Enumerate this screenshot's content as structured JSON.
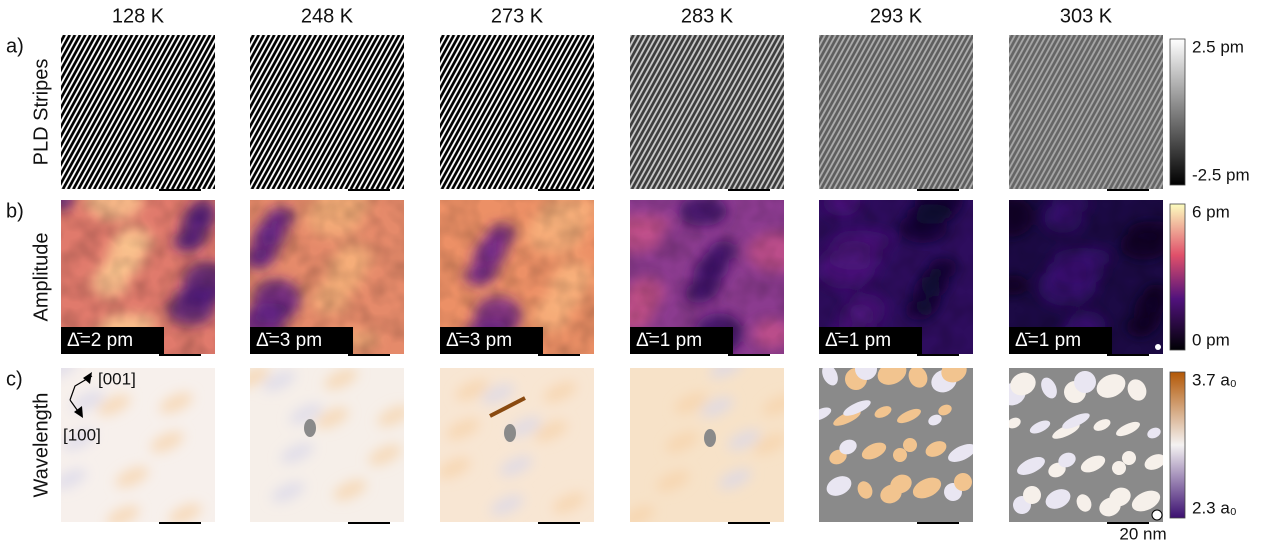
{
  "columns": [
    "128 K",
    "248 K",
    "273 K",
    "283 K",
    "293 K",
    "303 K"
  ],
  "rows": [
    {
      "letter": "a)",
      "label": "PLD Stripes",
      "colorbar": {
        "max": "2.5 pm",
        "min": "-2.5 pm"
      }
    },
    {
      "letter": "b)",
      "label": "Amplitude",
      "colorbar": {
        "max": "6 pm",
        "min": "0 pm"
      }
    },
    {
      "letter": "c)",
      "label": "Wavelength",
      "colorbar": {
        "max": "3.7 a₀",
        "min": "2.3 a₀"
      }
    }
  ],
  "amplitude_labels": [
    "Δ̄=2 pm",
    "Δ̄=3 pm",
    "Δ̄=3 pm",
    "Δ̄=1 pm",
    "Δ̄=1 pm",
    "Δ̄=1 pm"
  ],
  "directions": [
    "[001]",
    "[100]"
  ],
  "scale_bar": "20 nm"
}
